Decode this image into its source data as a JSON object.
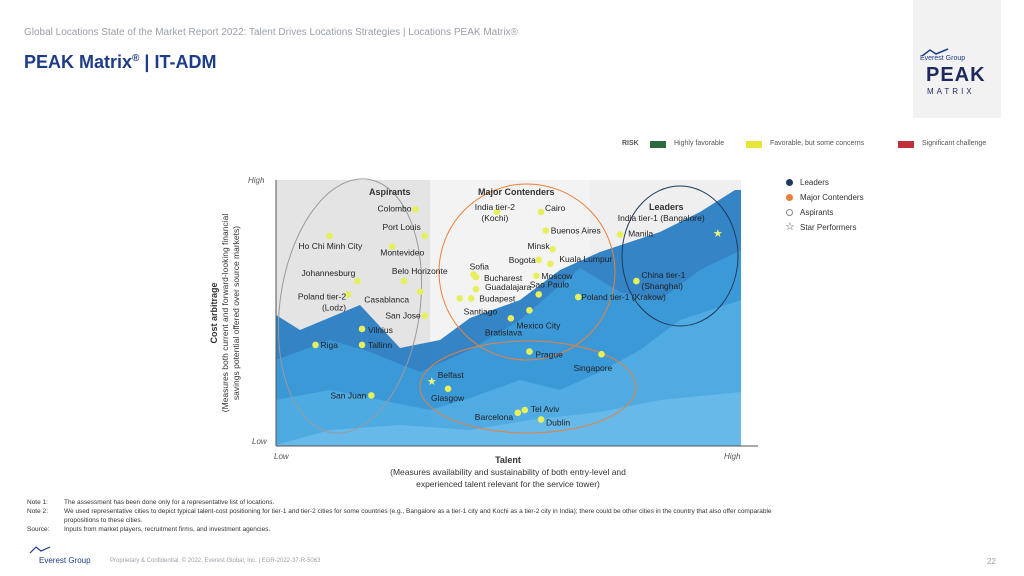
{
  "header": {
    "subtitle": "Global Locations State of the Market Report 2022: Talent Drives Locations Strategies | Locations PEAK Matrix®",
    "title": "PEAK Matrix",
    "title_suffix": " | IT-ADM"
  },
  "logo": {
    "company": "Everest Group",
    "product_line1": "PEAK",
    "product_line2": "MATRIX"
  },
  "risk_legend": {
    "label": "RISK",
    "items": [
      {
        "label": "Highly favorable",
        "color": "#2e6b3c"
      },
      {
        "label": "Favorable, but some concerns",
        "color": "#e6e639"
      },
      {
        "label": "Significant challenge",
        "color": "#c0303a"
      }
    ]
  },
  "category_legend": {
    "items": [
      {
        "label": "Leaders",
        "marker": "dot",
        "color": "#1f3b5c"
      },
      {
        "label": "Major Contenders",
        "marker": "dot",
        "color": "#e8803a"
      },
      {
        "label": "Aspirants",
        "marker": "circle-outline",
        "color": "#888888"
      },
      {
        "label": "Star Performers",
        "marker": "star-outline",
        "color": "#555555"
      }
    ]
  },
  "chart_data": {
    "type": "scatter",
    "title": "PEAK Matrix | IT-ADM",
    "xlabel": "Talent",
    "xlabel_sub1": "(Measures availability and sustainability of both entry-level and",
    "xlabel_sub2": "experienced talent relevant for the service tower)",
    "ylabel": "Cost arbitrage",
    "ylabel_sub1": "(Measures both current and forward-looking financial",
    "ylabel_sub2": "savings potential offered over source markets)",
    "x_low": "Low",
    "x_high": "High",
    "y_high": "High",
    "y_low": "Low",
    "xlim": [
      0,
      100
    ],
    "ylim": [
      0,
      100
    ],
    "zones": [
      "Aspirants",
      "Major Contenders",
      "Leaders"
    ],
    "points": [
      {
        "label": "Colombo",
        "x": 30,
        "y": 89,
        "category": "Aspirants"
      },
      {
        "label": "Port Louis",
        "x": 32,
        "y": 79,
        "category": "Aspirants"
      },
      {
        "label": "Ho Chi Minh City",
        "x": 11.5,
        "y": 79,
        "category": "Aspirants"
      },
      {
        "label": "Montevideo",
        "x": 25,
        "y": 75,
        "category": "Aspirants"
      },
      {
        "label": "Johannesburg",
        "x": 17.5,
        "y": 62,
        "category": "Aspirants"
      },
      {
        "label": "Belo Horizonte",
        "x": 27.5,
        "y": 62,
        "category": "Aspirants"
      },
      {
        "label": "Casablanca",
        "x": 31,
        "y": 58,
        "category": "Aspirants"
      },
      {
        "label": "Poland tier-2 (Lodz)",
        "x": 15.5,
        "y": 57,
        "category": "Aspirants"
      },
      {
        "label": "San Jose",
        "x": 32,
        "y": 49,
        "category": "Aspirants"
      },
      {
        "label": "Vilnius",
        "x": 18.5,
        "y": 44,
        "category": "Aspirants"
      },
      {
        "label": "Riga",
        "x": 8.5,
        "y": 38,
        "category": "Aspirants"
      },
      {
        "label": "Tallinn",
        "x": 18.5,
        "y": 38,
        "category": "Aspirants"
      },
      {
        "label": "San Juan",
        "x": 20.5,
        "y": 19,
        "category": "Aspirants"
      },
      {
        "label": "India tier-2 (Kochi)",
        "x": 47.5,
        "y": 88,
        "category": "Major Contenders"
      },
      {
        "label": "Cairo",
        "x": 57,
        "y": 88,
        "category": "Major Contenders"
      },
      {
        "label": "Buenos Aires",
        "x": 58,
        "y": 81,
        "category": "Major Contenders"
      },
      {
        "label": "Minsk",
        "x": 59.5,
        "y": 74,
        "category": "Major Contenders"
      },
      {
        "label": "Bogota",
        "x": 56.5,
        "y": 70,
        "category": "Major Contenders"
      },
      {
        "label": "Kuala Lumpur",
        "x": 59,
        "y": 68.5,
        "category": "Major Contenders"
      },
      {
        "label": "Sofia",
        "x": 42.5,
        "y": 64.5,
        "category": "Major Contenders"
      },
      {
        "label": "Bucharest",
        "x": 43,
        "y": 63.5,
        "category": "Major Contenders"
      },
      {
        "label": "Moscow",
        "x": 56,
        "y": 64,
        "category": "Major Contenders"
      },
      {
        "label": "Guadalajara",
        "x": 43,
        "y": 59,
        "category": "Major Contenders"
      },
      {
        "label": "Budapest",
        "x": 42,
        "y": 55.5,
        "category": "Major Contenders"
      },
      {
        "label": "Santiago",
        "x": 39.5,
        "y": 55.5,
        "category": "Major Contenders"
      },
      {
        "label": "Sao Paulo",
        "x": 56.5,
        "y": 57,
        "category": "Major Contenders"
      },
      {
        "label": "Bratislava",
        "x": 50.5,
        "y": 48,
        "category": "Major Contenders"
      },
      {
        "label": "Mexico City",
        "x": 54.5,
        "y": 51,
        "category": "Major Contenders"
      },
      {
        "label": "Prague",
        "x": 54.5,
        "y": 35.5,
        "category": "Major Contenders"
      },
      {
        "label": "Belfast",
        "x": 33.5,
        "y": 24.5,
        "category": "Major Contenders",
        "star": true
      },
      {
        "label": "Glasgow",
        "x": 37,
        "y": 21.5,
        "category": "Major Contenders"
      },
      {
        "label": "Tel Aviv",
        "x": 53.5,
        "y": 13.5,
        "category": "Major Contenders"
      },
      {
        "label": "Barcelona",
        "x": 52,
        "y": 12.5,
        "category": "Major Contenders"
      },
      {
        "label": "Dublin",
        "x": 57,
        "y": 10,
        "category": "Major Contenders"
      },
      {
        "label": "Singapore",
        "x": 70,
        "y": 34.5,
        "category": "Major Contenders"
      },
      {
        "label": "India tier-1 (Bangalore)",
        "x": 95,
        "y": 80,
        "category": "Leaders",
        "star": true
      },
      {
        "label": "Manila",
        "x": 74,
        "y": 79.5,
        "category": "Leaders"
      },
      {
        "label": "China tier-1 (Shanghai)",
        "x": 77.5,
        "y": 62,
        "category": "Leaders"
      },
      {
        "label": "Poland tier-1 (Krakow)",
        "x": 65,
        "y": 56,
        "category": "Leaders"
      }
    ]
  },
  "notes": [
    {
      "key": "Note 1:",
      "text": "The assessment has been done only for a representative list of locations."
    },
    {
      "key": "Note 2:",
      "text": "We used representative cities to depict typical talent-cost positioning for tier-1 and tier-2 cities for some countries (e.g., Bangalore as a tier-1 city and Kochi as a tier-2 city in India); there could be other cities in the country that also offer comparable"
    },
    {
      "key": "",
      "text": "propositions to these cities."
    },
    {
      "key": "Source:",
      "text": "Inputs from market players, recruitment firms, and investment agencies."
    }
  ],
  "footer": {
    "logo": "Everest Group",
    "confidential": "Proprietary & Confidential. © 2022, Everest Global, Inc. | EGR-2022-37-R-5063",
    "page": "22"
  }
}
